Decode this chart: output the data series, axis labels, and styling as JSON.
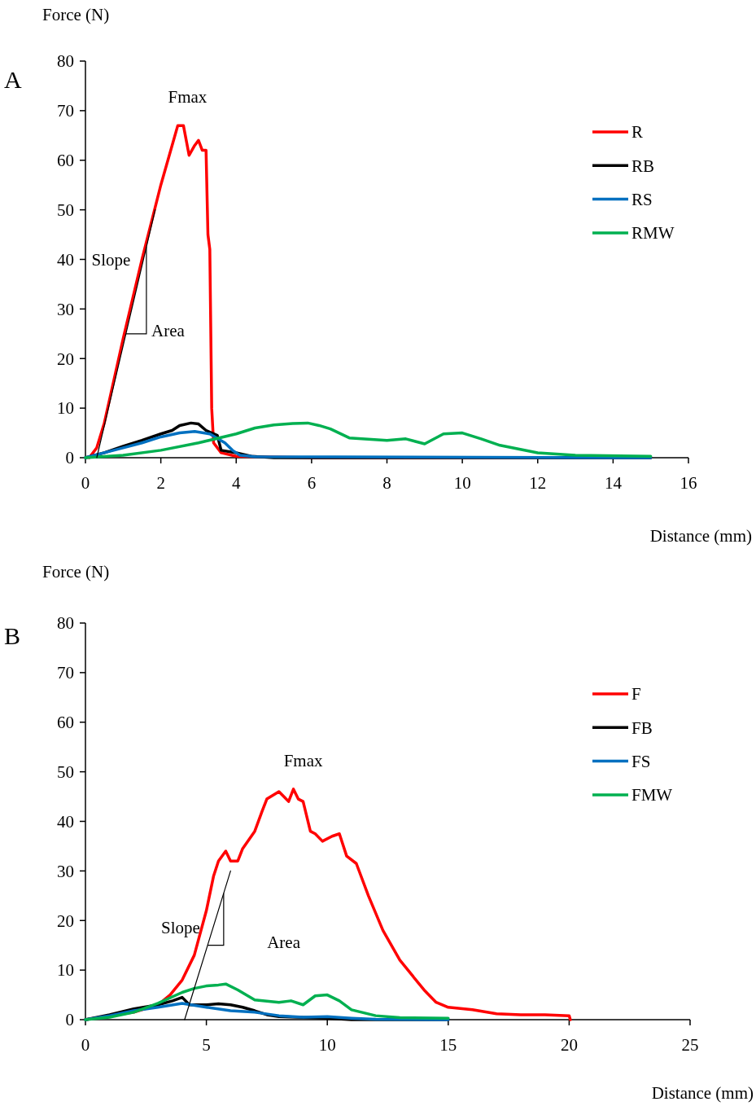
{
  "chart_data": [
    {
      "type": "line",
      "title": "A",
      "xlabel": "Distance (mm)",
      "ylabel": "Force (N)",
      "xlim": [
        0,
        16
      ],
      "xticks": [
        0,
        2,
        4,
        6,
        8,
        10,
        12,
        14,
        16
      ],
      "ylim": [
        0,
        80
      ],
      "yticks": [
        0,
        10,
        20,
        30,
        40,
        50,
        60,
        70,
        80
      ],
      "legend": "right",
      "grid": false,
      "annotations": [
        "Fmax",
        {
          "text": "Slope",
          "x": 1.54,
          "y": 40
        },
        "Area"
      ],
      "series": [
        {
          "name": "R",
          "color": "#ff0000",
          "x": [
            0.1,
            0.3,
            0.5,
            1,
            1.5,
            2,
            2.3,
            2.45,
            2.6,
            2.75,
            2.9,
            3.0,
            3.1,
            3.2,
            3.25,
            3.3,
            3.35,
            3.4,
            3.6,
            4,
            6,
            15
          ],
          "values": [
            0,
            2,
            7,
            24,
            40,
            55,
            63,
            67,
            67,
            61,
            63,
            64,
            62,
            62,
            45,
            42,
            10,
            3,
            1,
            0.3,
            0,
            0
          ]
        },
        {
          "name": "RB",
          "color": "#000000",
          "x": [
            0,
            0.5,
            1,
            1.5,
            2,
            2.3,
            2.5,
            2.8,
            3.0,
            3.2,
            3.5,
            3.6,
            4,
            4.4,
            5,
            15
          ],
          "values": [
            0,
            1,
            2.3,
            3.5,
            4.8,
            5.5,
            6.5,
            7,
            6.8,
            5.5,
            4.5,
            1.5,
            1,
            0.3,
            0,
            0
          ]
        },
        {
          "name": "RS",
          "color": "#0070c0",
          "x": [
            0,
            0.5,
            1,
            1.5,
            2,
            2.5,
            2.9,
            3.3,
            3.7,
            3.9,
            4.1,
            4.5,
            15
          ],
          "values": [
            0,
            1,
            2,
            3,
            4.2,
            5,
            5.3,
            4.8,
            3,
            1.5,
            0.5,
            0.2,
            0
          ]
        },
        {
          "name": "RMW",
          "color": "#00b050",
          "x": [
            0,
            1,
            2,
            3,
            4,
            4.5,
            5,
            5.5,
            5.9,
            6.2,
            6.5,
            7,
            8,
            8.5,
            9,
            9.5,
            10,
            10.5,
            11,
            12,
            13,
            15
          ],
          "values": [
            0,
            0.5,
            1.5,
            3,
            4.8,
            6,
            6.6,
            6.9,
            7,
            6.5,
            5.8,
            4,
            3.5,
            3.8,
            2.8,
            4.8,
            5,
            3.8,
            2.5,
            1,
            0.5,
            0.3
          ]
        },
        {
          "type": "line",
          "color": "#000000",
          "x": [
            0.3,
            1.85
          ],
          "values": [
            0,
            50
          ]
        }
      ]
    },
    {
      "type": "line",
      "title": "B",
      "xlabel": "Distance (mm)",
      "ylabel": "Force (N)",
      "xlim": [
        0,
        25
      ],
      "xticks": [
        0,
        5,
        10,
        15,
        20,
        25
      ],
      "ylim": [
        0,
        80
      ],
      "yticks": [
        0,
        10,
        20,
        30,
        40,
        50,
        60,
        70,
        80
      ],
      "legend": "right",
      "grid": false,
      "annotations": [
        "Fmax",
        {
          "text": "Slope",
          "x": 5.28,
          "y": 18.6
        },
        "Area"
      ],
      "series": [
        {
          "name": "F",
          "color": "#ff0000",
          "x": [
            0,
            2,
            3,
            3.5,
            4,
            4.5,
            5,
            5.3,
            5.5,
            5.8,
            6,
            6.3,
            6.5,
            7,
            7.3,
            7.5,
            8,
            8.2,
            8.4,
            8.6,
            8.8,
            9,
            9.3,
            9.5,
            9.8,
            10.2,
            10.5,
            10.8,
            11.2,
            11.7,
            12.3,
            13,
            13.5,
            14,
            14.5,
            15,
            16,
            17,
            18,
            19,
            20,
            20.05
          ],
          "values": [
            0,
            1.5,
            3,
            5,
            8,
            13,
            22,
            29,
            32,
            34,
            32,
            32,
            34.5,
            38,
            42,
            44.5,
            46,
            45,
            44,
            46.5,
            44.5,
            44,
            38,
            37.5,
            36,
            37,
            37.5,
            33,
            31.5,
            25,
            18,
            12,
            9,
            6,
            3.5,
            2.5,
            2,
            1.2,
            1,
            1,
            0.8,
            0
          ]
        },
        {
          "name": "FB",
          "color": "#000000",
          "x": [
            0,
            1,
            2,
            3,
            3.6,
            4,
            4.3,
            5,
            5.5,
            6,
            6.5,
            7,
            7.5,
            8,
            10,
            11,
            15
          ],
          "values": [
            0,
            1,
            2.2,
            3,
            3.8,
            4.5,
            3,
            3,
            3.2,
            3,
            2.5,
            1.8,
            1,
            0.6,
            0.3,
            0,
            0
          ]
        },
        {
          "name": "FS",
          "color": "#0070c0",
          "x": [
            0,
            1,
            2,
            3,
            4,
            5,
            6,
            7,
            8,
            9,
            10,
            11,
            12,
            15
          ],
          "values": [
            0,
            0.8,
            1.8,
            2.5,
            3.3,
            2.5,
            1.8,
            1.5,
            0.8,
            0.5,
            0.6,
            0.3,
            0.1,
            0
          ]
        },
        {
          "name": "FMW",
          "color": "#00b050",
          "x": [
            0,
            1,
            2,
            3,
            4,
            4.5,
            5,
            5.5,
            5.8,
            6.3,
            7,
            8,
            8.5,
            9,
            9.5,
            10,
            10.5,
            11,
            12,
            13,
            15
          ],
          "values": [
            0,
            0.5,
            1.5,
            3.3,
            5.5,
            6.3,
            6.8,
            7,
            7.2,
            6,
            4,
            3.5,
            3.8,
            3,
            4.8,
            5,
            3.8,
            2,
            0.8,
            0.4,
            0.3
          ]
        },
        {
          "type": "line",
          "color": "#000000",
          "x": [
            4.1,
            6
          ],
          "values": [
            0,
            30
          ]
        }
      ]
    }
  ]
}
